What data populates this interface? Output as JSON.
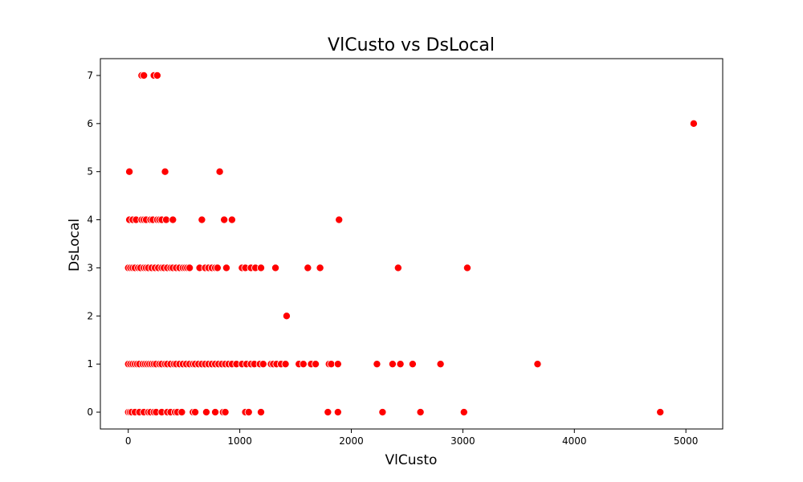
{
  "chart_data": {
    "type": "scatter",
    "title": "VlCusto vs DsLocal",
    "xlabel": "VlCusto",
    "ylabel": "DsLocal",
    "xlim": [
      -250,
      5330
    ],
    "ylim": [
      -0.35,
      7.35
    ],
    "xticks": [
      0,
      1000,
      2000,
      3000,
      4000,
      5000
    ],
    "yticks": [
      0,
      1,
      2,
      3,
      4,
      5,
      6,
      7
    ],
    "grid": false,
    "legend": "none",
    "marker_color": "#ff0000",
    "marker_edge": "#ffffff",
    "series": [
      {
        "points": [
          [
            0,
            0
          ],
          [
            15,
            0
          ],
          [
            30,
            0
          ],
          [
            60,
            0
          ],
          [
            100,
            0
          ],
          [
            140,
            0
          ],
          [
            180,
            0
          ],
          [
            200,
            0
          ],
          [
            230,
            0
          ],
          [
            250,
            0
          ],
          [
            300,
            0
          ],
          [
            350,
            0
          ],
          [
            380,
            0
          ],
          [
            420,
            0
          ],
          [
            440,
            0
          ],
          [
            480,
            0
          ],
          [
            580,
            0
          ],
          [
            600,
            0
          ],
          [
            700,
            0
          ],
          [
            780,
            0
          ],
          [
            850,
            0
          ],
          [
            870,
            0
          ],
          [
            1050,
            0
          ],
          [
            1080,
            0
          ],
          [
            1190,
            0
          ],
          [
            1790,
            0
          ],
          [
            1880,
            0
          ],
          [
            2280,
            0
          ],
          [
            2620,
            0
          ],
          [
            3010,
            0
          ],
          [
            4770,
            0
          ],
          [
            0,
            1
          ],
          [
            20,
            1
          ],
          [
            40,
            1
          ],
          [
            60,
            1
          ],
          [
            80,
            1
          ],
          [
            100,
            1
          ],
          [
            130,
            1
          ],
          [
            150,
            1
          ],
          [
            170,
            1
          ],
          [
            190,
            1
          ],
          [
            210,
            1
          ],
          [
            230,
            1
          ],
          [
            250,
            1
          ],
          [
            280,
            1
          ],
          [
            300,
            1
          ],
          [
            330,
            1
          ],
          [
            350,
            1
          ],
          [
            380,
            1
          ],
          [
            410,
            1
          ],
          [
            430,
            1
          ],
          [
            460,
            1
          ],
          [
            490,
            1
          ],
          [
            520,
            1
          ],
          [
            550,
            1
          ],
          [
            580,
            1
          ],
          [
            600,
            1
          ],
          [
            630,
            1
          ],
          [
            660,
            1
          ],
          [
            690,
            1
          ],
          [
            720,
            1
          ],
          [
            750,
            1
          ],
          [
            780,
            1
          ],
          [
            810,
            1
          ],
          [
            840,
            1
          ],
          [
            870,
            1
          ],
          [
            900,
            1
          ],
          [
            930,
            1
          ],
          [
            970,
            1
          ],
          [
            1020,
            1
          ],
          [
            1060,
            1
          ],
          [
            1100,
            1
          ],
          [
            1130,
            1
          ],
          [
            1180,
            1
          ],
          [
            1210,
            1
          ],
          [
            1280,
            1
          ],
          [
            1300,
            1
          ],
          [
            1330,
            1
          ],
          [
            1370,
            1
          ],
          [
            1410,
            1
          ],
          [
            1530,
            1
          ],
          [
            1570,
            1
          ],
          [
            1640,
            1
          ],
          [
            1680,
            1
          ],
          [
            1800,
            1
          ],
          [
            1820,
            1
          ],
          [
            1880,
            1
          ],
          [
            2230,
            1
          ],
          [
            2370,
            1
          ],
          [
            2440,
            1
          ],
          [
            2550,
            1
          ],
          [
            2800,
            1
          ],
          [
            3670,
            1
          ],
          [
            1420,
            2
          ],
          [
            0,
            3
          ],
          [
            20,
            3
          ],
          [
            40,
            3
          ],
          [
            60,
            3
          ],
          [
            90,
            3
          ],
          [
            110,
            3
          ],
          [
            140,
            3
          ],
          [
            160,
            3
          ],
          [
            180,
            3
          ],
          [
            210,
            3
          ],
          [
            240,
            3
          ],
          [
            270,
            3
          ],
          [
            300,
            3
          ],
          [
            320,
            3
          ],
          [
            350,
            3
          ],
          [
            380,
            3
          ],
          [
            400,
            3
          ],
          [
            430,
            3
          ],
          [
            460,
            3
          ],
          [
            490,
            3
          ],
          [
            510,
            3
          ],
          [
            530,
            3
          ],
          [
            550,
            3
          ],
          [
            640,
            3
          ],
          [
            690,
            3
          ],
          [
            720,
            3
          ],
          [
            750,
            3
          ],
          [
            780,
            3
          ],
          [
            800,
            3
          ],
          [
            880,
            3
          ],
          [
            1020,
            3
          ],
          [
            1050,
            3
          ],
          [
            1100,
            3
          ],
          [
            1140,
            3
          ],
          [
            1190,
            3
          ],
          [
            1320,
            3
          ],
          [
            1610,
            3
          ],
          [
            1720,
            3
          ],
          [
            2420,
            3
          ],
          [
            3040,
            3
          ],
          [
            10,
            4
          ],
          [
            40,
            4
          ],
          [
            70,
            4
          ],
          [
            120,
            4
          ],
          [
            140,
            4
          ],
          [
            160,
            4
          ],
          [
            200,
            4
          ],
          [
            220,
            4
          ],
          [
            260,
            4
          ],
          [
            280,
            4
          ],
          [
            300,
            4
          ],
          [
            340,
            4
          ],
          [
            400,
            4
          ],
          [
            660,
            4
          ],
          [
            860,
            4
          ],
          [
            930,
            4
          ],
          [
            1890,
            4
          ],
          [
            10,
            5
          ],
          [
            330,
            5
          ],
          [
            820,
            5
          ],
          [
            5070,
            6
          ],
          [
            120,
            7
          ],
          [
            140,
            7
          ],
          [
            230,
            7
          ],
          [
            260,
            7
          ]
        ]
      }
    ]
  }
}
